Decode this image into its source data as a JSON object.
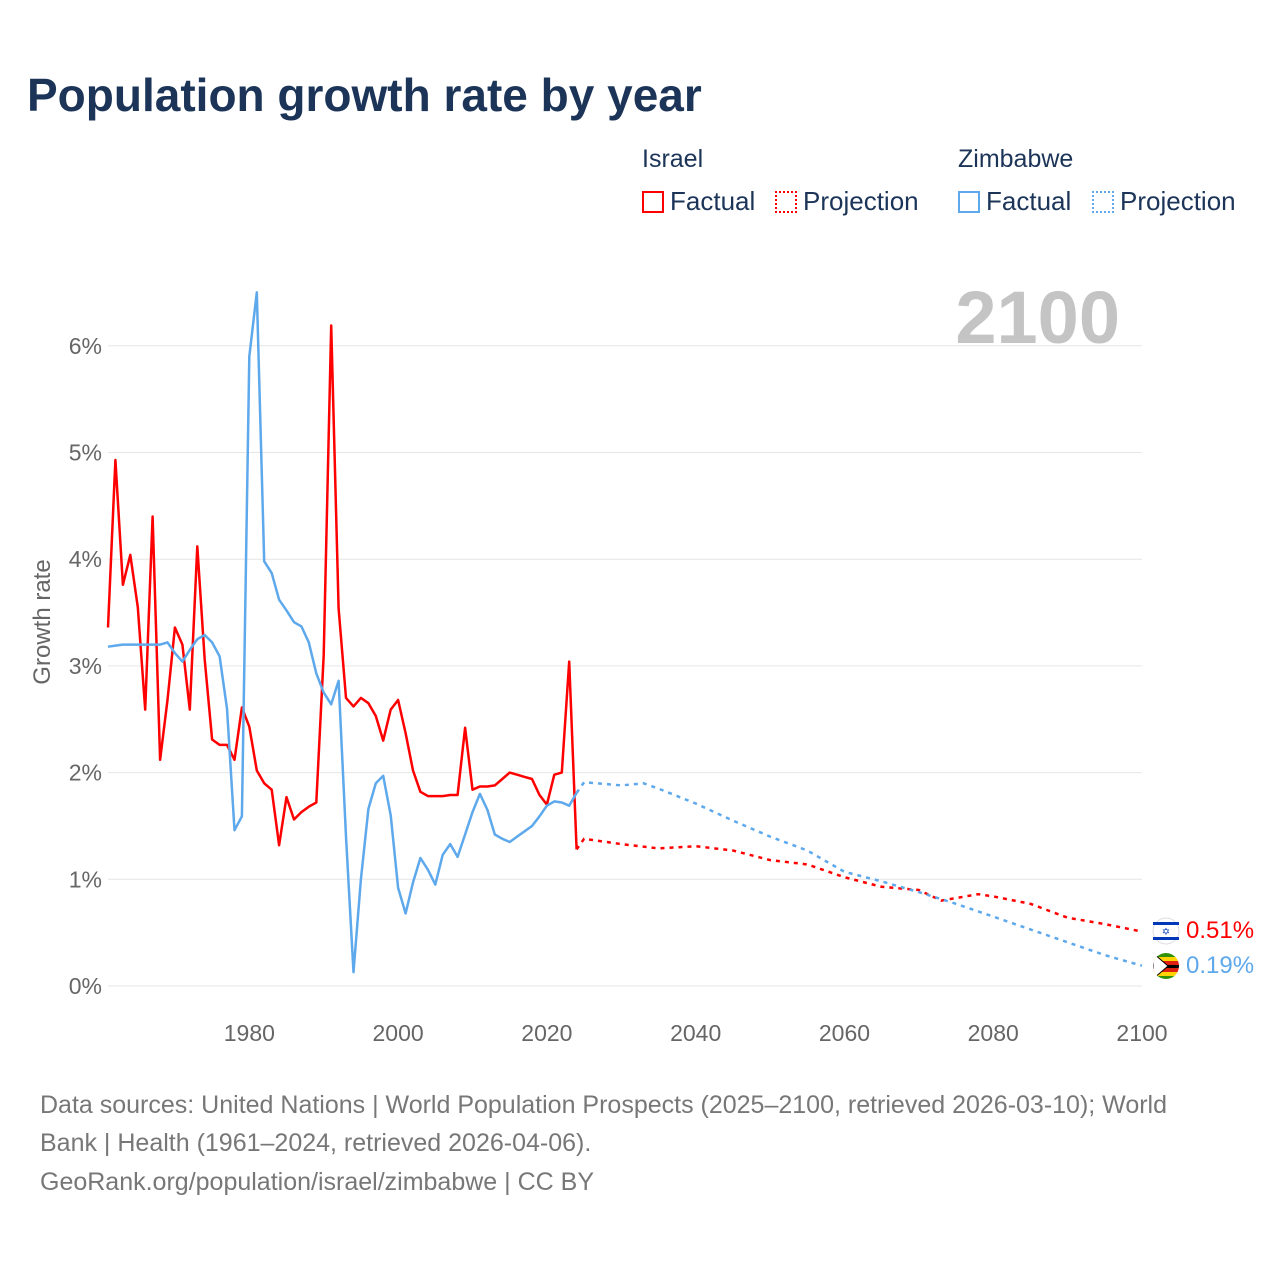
{
  "title": "Population growth rate by year",
  "legend": {
    "groups": [
      {
        "country": "Israel",
        "factual": "Factual",
        "projection": "Projection",
        "color": "#ff0000"
      },
      {
        "country": "Zimbabwe",
        "factual": "Factual",
        "projection": "Projection",
        "color": "#5ea8ec"
      }
    ]
  },
  "end_labels": {
    "israel": "0.51%",
    "zimbabwe": "0.19%"
  },
  "footer": {
    "line1": "Data sources: United Nations | World Population Prospects (2025–2100, retrieved 2026-03-10); World",
    "line2": "Bank | Health (1961–2024, retrieved 2026-04-06).",
    "line3": "GeoRank.org/population/israel/zimbabwe | CC BY"
  },
  "chart_data": {
    "type": "line",
    "title": "Population growth rate by year",
    "ylabel": "Growth rate",
    "xlabel": "",
    "current_year_label": "2100",
    "xlim": [
      1961,
      2100
    ],
    "ylim": [
      0,
      6.5
    ],
    "x_ticks": [
      1980,
      2000,
      2020,
      2040,
      2060,
      2080,
      2100
    ],
    "y_ticks": [
      0,
      1,
      2,
      3,
      4,
      5,
      6
    ],
    "y_tick_labels": [
      "0%",
      "1%",
      "2%",
      "3%",
      "4%",
      "5%",
      "6%"
    ],
    "grid": true,
    "series": [
      {
        "name": "Israel Factual",
        "color": "#ff0000",
        "dashed": false,
        "start": 1961,
        "values": [
          3.36,
          4.93,
          3.76,
          4.04,
          3.55,
          2.59,
          4.4,
          2.12,
          2.68,
          3.36,
          3.2,
          2.59,
          4.12,
          3.06,
          2.31,
          2.26,
          2.26,
          2.12,
          2.61,
          2.43,
          2.02,
          1.9,
          1.84,
          1.32,
          1.77,
          1.56,
          1.63,
          1.68,
          1.72,
          3.1,
          6.19,
          3.54,
          2.7,
          2.62,
          2.7,
          2.65,
          2.53,
          2.3,
          2.59,
          2.68,
          2.37,
          2.02,
          1.82,
          1.78,
          1.78,
          1.78,
          1.79,
          1.79,
          2.42,
          1.84,
          1.87,
          1.87,
          1.88,
          1.94,
          2.0,
          1.98,
          1.96,
          1.94,
          1.79,
          1.7,
          1.98,
          2.0,
          3.04,
          1.28
        ]
      },
      {
        "name": "Zimbabwe Factual",
        "color": "#5ea8ec",
        "dashed": false,
        "start": 1961,
        "values": [
          3.18,
          3.19,
          3.2,
          3.2,
          3.2,
          3.2,
          3.2,
          3.2,
          3.22,
          3.12,
          3.04,
          3.15,
          3.25,
          3.29,
          3.22,
          3.09,
          2.6,
          1.46,
          1.59,
          5.9,
          6.5,
          3.98,
          3.87,
          3.62,
          3.52,
          3.41,
          3.37,
          3.22,
          2.93,
          2.75,
          2.64,
          2.86,
          1.4,
          0.13,
          1.0,
          1.66,
          1.9,
          1.97,
          1.6,
          0.92,
          0.68,
          0.97,
          1.2,
          1.09,
          0.95,
          1.23,
          1.33,
          1.21,
          1.42,
          1.63,
          1.8,
          1.65,
          1.42,
          1.38,
          1.35,
          1.4,
          1.45,
          1.5,
          1.59,
          1.69,
          1.73,
          1.72,
          1.69,
          1.81
        ]
      },
      {
        "name": "Israel Projection",
        "color": "#ff0000",
        "dashed": true,
        "x": [
          2024,
          2025,
          2030,
          2035,
          2040,
          2045,
          2050,
          2055,
          2060,
          2065,
          2070,
          2073,
          2078,
          2080,
          2085,
          2090,
          2095,
          2100
        ],
        "values": [
          1.28,
          1.38,
          1.33,
          1.29,
          1.31,
          1.27,
          1.18,
          1.14,
          1.02,
          0.93,
          0.9,
          0.8,
          0.86,
          0.84,
          0.77,
          0.64,
          0.58,
          0.51
        ]
      },
      {
        "name": "Zimbabwe Projection",
        "color": "#5ea8ec",
        "dashed": true,
        "x": [
          2024,
          2025,
          2030,
          2033,
          2035,
          2040,
          2045,
          2050,
          2055,
          2060,
          2065,
          2070,
          2075,
          2080,
          2085,
          2090,
          2095,
          2100
        ],
        "values": [
          1.81,
          1.91,
          1.88,
          1.9,
          1.85,
          1.71,
          1.55,
          1.4,
          1.27,
          1.07,
          0.98,
          0.88,
          0.77,
          0.65,
          0.53,
          0.41,
          0.29,
          0.19
        ]
      }
    ]
  }
}
